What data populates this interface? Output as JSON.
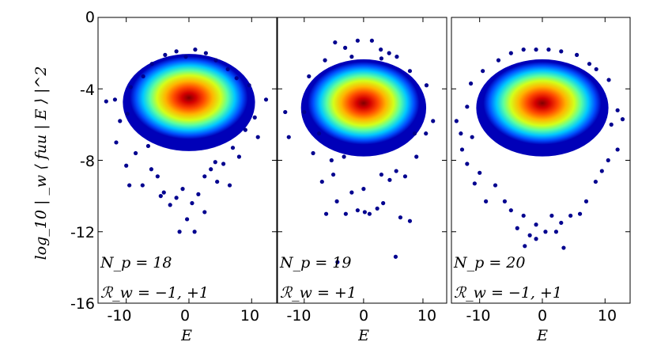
{
  "chart_data": {
    "type": "scatter",
    "ylabel": "log_10 | _w ⟨ fuu | E ⟩ |^2",
    "xlabel": "E",
    "xlim": [
      -14.5,
      14
    ],
    "ylim": [
      -16,
      0
    ],
    "xticks": [
      -10,
      0,
      10
    ],
    "yticks": [
      0,
      -4,
      -8,
      -12,
      -16
    ],
    "colormap": "jet",
    "colors": {
      "low_density": "#00008f",
      "high_density": "#800000"
    },
    "panels": [
      {
        "annotation_np": "N_p = 18",
        "annotation_rw": "ℛ_w = −1, +1",
        "center": {
          "E": 0,
          "y": -4.5
        },
        "points": [
          [
            -13.2,
            -4.7
          ],
          [
            -11.8,
            -4.6
          ],
          [
            -11.0,
            -5.8
          ],
          [
            -11.6,
            -7.0
          ],
          [
            -9.8,
            -5.4
          ],
          [
            -10.0,
            -8.3
          ],
          [
            -9.5,
            -9.4
          ],
          [
            -8.5,
            -7.6
          ],
          [
            -7.4,
            -9.4
          ],
          [
            -6.5,
            -7.2
          ],
          [
            -6.0,
            -8.5
          ],
          [
            -5.0,
            -8.9
          ],
          [
            -4.5,
            -10.0
          ],
          [
            -4.0,
            -9.8
          ],
          [
            -3.0,
            -10.5
          ],
          [
            -2.0,
            -10.1
          ],
          [
            -1.0,
            -9.6
          ],
          [
            -0.3,
            -11.3
          ],
          [
            0.5,
            -10.4
          ],
          [
            -1.5,
            -12.0
          ],
          [
            0.9,
            -12.0
          ],
          [
            1.5,
            -9.9
          ],
          [
            2.5,
            -10.9
          ],
          [
            2.5,
            -8.9
          ],
          [
            3.5,
            -8.5
          ],
          [
            4.5,
            -9.2
          ],
          [
            4.2,
            -8.1
          ],
          [
            5.5,
            -8.2
          ],
          [
            7.0,
            -7.3
          ],
          [
            6.5,
            -9.4
          ],
          [
            8.0,
            -7.8
          ],
          [
            9.0,
            -6.3
          ],
          [
            10.5,
            -5.6
          ],
          [
            11.0,
            -6.7
          ],
          [
            12.3,
            -4.6
          ],
          [
            9.6,
            -3.8
          ],
          [
            -9.3,
            -3.9
          ],
          [
            -5.9,
            -2.6
          ],
          [
            -3.8,
            -2.1
          ],
          [
            -2.0,
            -1.9
          ],
          [
            -0.5,
            -2.2
          ],
          [
            1.0,
            -1.8
          ],
          [
            2.7,
            -2.0
          ],
          [
            4.3,
            -2.4
          ],
          [
            6.2,
            -2.9
          ],
          [
            -7.3,
            -3.3
          ],
          [
            7.6,
            -3.4
          ]
        ]
      },
      {
        "annotation_np": "N_p = 19",
        "annotation_rw": "ℛ_w = +1",
        "center": {
          "E": 0,
          "y": -4.8
        },
        "points": [
          [
            -13.2,
            -5.3
          ],
          [
            -12.6,
            -6.7
          ],
          [
            -10.0,
            -5.3
          ],
          [
            -8.5,
            -7.6
          ],
          [
            -7.5,
            -6.5
          ],
          [
            -7.0,
            -9.2
          ],
          [
            -5.4,
            -8.0
          ],
          [
            -3.3,
            -7.8
          ],
          [
            -5.1,
            -8.8
          ],
          [
            -4.5,
            -10.3
          ],
          [
            -6.3,
            -11.0
          ],
          [
            -3.0,
            -11.0
          ],
          [
            -2.0,
            -9.8
          ],
          [
            -1.0,
            -10.8
          ],
          [
            0.2,
            -10.9
          ],
          [
            1.0,
            -11.0
          ],
          [
            2.3,
            -10.7
          ],
          [
            0.0,
            -9.6
          ],
          [
            3.3,
            -10.4
          ],
          [
            3.0,
            -8.8
          ],
          [
            4.4,
            -9.1
          ],
          [
            5.5,
            -8.6
          ],
          [
            7.0,
            -8.9
          ],
          [
            6.2,
            -11.2
          ],
          [
            7.8,
            -11.4
          ],
          [
            8.6,
            -6.5
          ],
          [
            8.9,
            -7.8
          ],
          [
            10.5,
            -6.5
          ],
          [
            11.7,
            -5.8
          ],
          [
            10.6,
            -3.8
          ],
          [
            5.4,
            -13.4
          ],
          [
            -4.4,
            -13.7
          ],
          [
            -9.2,
            -3.3
          ],
          [
            -6.5,
            -2.4
          ],
          [
            -4.8,
            -1.4
          ],
          [
            -3.1,
            -1.7
          ],
          [
            -1.0,
            -1.3
          ],
          [
            1.4,
            -1.3
          ],
          [
            2.9,
            -1.8
          ],
          [
            4.3,
            -2.0
          ],
          [
            5.6,
            -2.2
          ],
          [
            7.8,
            -3.0
          ],
          [
            -2.0,
            -2.2
          ],
          [
            3.0,
            -2.3
          ]
        ]
      },
      {
        "annotation_np": "N_p = 20",
        "annotation_rw": "ℛ_w = −1, +1",
        "center": {
          "E": 0,
          "y": -4.8
        },
        "points": [
          [
            -13.7,
            -5.8
          ],
          [
            -12.8,
            -7.4
          ],
          [
            -13.0,
            -6.5
          ],
          [
            -12.0,
            -8.2
          ],
          [
            -11.2,
            -6.7
          ],
          [
            -10.8,
            -9.3
          ],
          [
            -10.0,
            -8.7
          ],
          [
            -9.0,
            -10.3
          ],
          [
            -7.5,
            -9.4
          ],
          [
            -6.0,
            -10.3
          ],
          [
            -5.0,
            -10.8
          ],
          [
            -4.0,
            -11.8
          ],
          [
            -3.0,
            -11.1
          ],
          [
            -2.0,
            -12.2
          ],
          [
            -1.0,
            -11.6
          ],
          [
            0.5,
            -12.0
          ],
          [
            -2.8,
            -12.8
          ],
          [
            -1.0,
            -12.4
          ],
          [
            1.5,
            -11.1
          ],
          [
            2.2,
            -12.0
          ],
          [
            3.0,
            -11.5
          ],
          [
            3.4,
            -12.9
          ],
          [
            4.5,
            -11.1
          ],
          [
            6.0,
            -11.0
          ],
          [
            7.0,
            -10.3
          ],
          [
            8.5,
            -9.2
          ],
          [
            9.5,
            -8.6
          ],
          [
            10.5,
            -8.0
          ],
          [
            11.0,
            -6.0
          ],
          [
            12.0,
            -7.4
          ],
          [
            12.8,
            -5.7
          ],
          [
            10.6,
            -3.5
          ],
          [
            -11.4,
            -3.7
          ],
          [
            -9.5,
            -3.0
          ],
          [
            -7.0,
            -2.4
          ],
          [
            -5.0,
            -2.0
          ],
          [
            -3.0,
            -1.8
          ],
          [
            -1.0,
            -1.8
          ],
          [
            1.0,
            -1.8
          ],
          [
            3.0,
            -1.9
          ],
          [
            5.5,
            -2.1
          ],
          [
            7.5,
            -2.6
          ],
          [
            8.6,
            -2.9
          ],
          [
            -12.0,
            -5.0
          ],
          [
            12.0,
            -5.2
          ]
        ]
      }
    ]
  }
}
